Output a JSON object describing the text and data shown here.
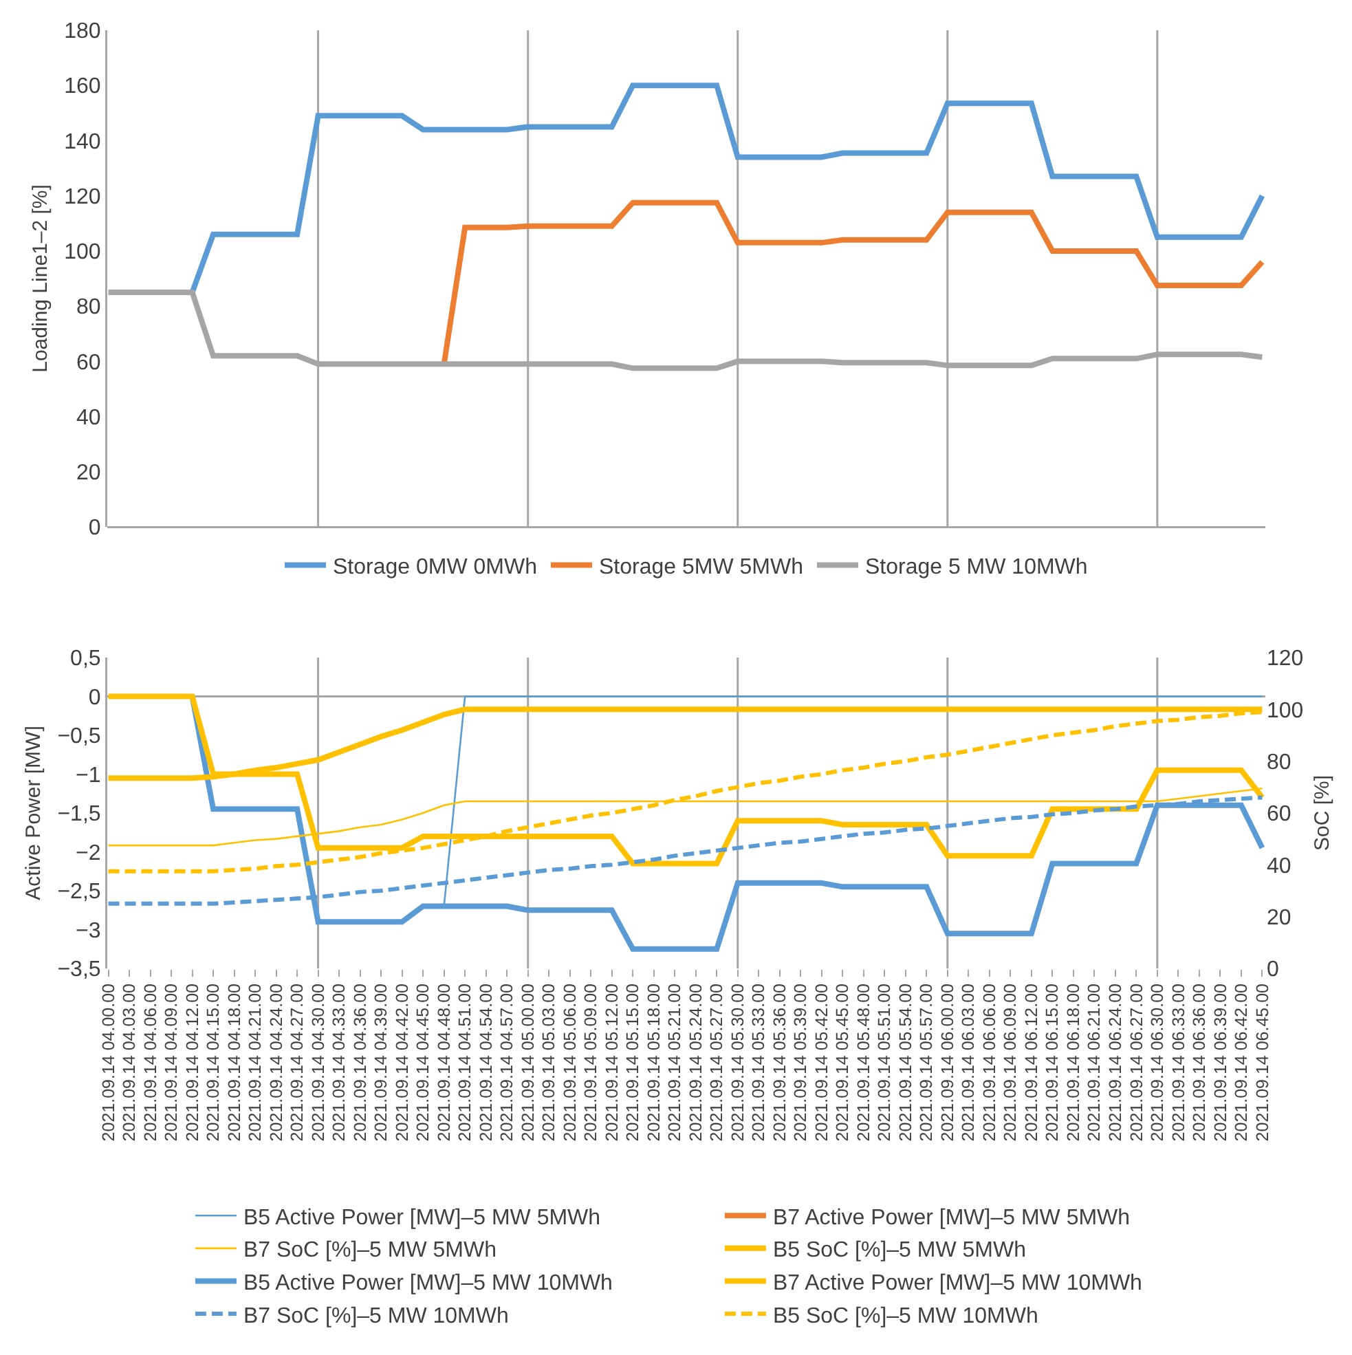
{
  "chart_data": [
    {
      "type": "line",
      "ylabel": "Loading Line1–2 [%]",
      "ylim": [
        0,
        180
      ],
      "yticks": [
        0,
        20,
        40,
        60,
        80,
        100,
        120,
        140,
        160,
        180
      ],
      "tick_labels": "y",
      "legend": "bottom",
      "grid": "x",
      "categories": [
        null,
        null,
        null,
        null,
        null,
        null,
        null,
        null,
        null,
        null,
        null,
        null,
        null,
        null,
        null,
        null,
        null,
        null,
        null,
        null,
        null,
        null,
        null,
        null,
        null,
        null,
        null,
        null,
        null,
        null,
        null,
        null,
        null,
        null,
        null,
        null,
        null,
        null,
        null,
        null,
        null,
        null,
        null,
        null,
        null,
        null,
        null,
        null,
        null,
        null,
        null,
        null,
        null,
        null,
        null,
        null
      ],
      "series": [
        {
          "name": "Storage 0MW 0MWh",
          "color": "#5b9bd5",
          "values": [
            null,
            null,
            null,
            null,
            85,
            106,
            106,
            106,
            106,
            106,
            149,
            149,
            149,
            149,
            149,
            144,
            144,
            144,
            144,
            144,
            145,
            145,
            145,
            145,
            145,
            160,
            160,
            160,
            160,
            160,
            134,
            134,
            134,
            134,
            134,
            135.5,
            135.5,
            135.5,
            135.5,
            135.5,
            153.5,
            153.5,
            153.5,
            153.5,
            153.5,
            127,
            127,
            127,
            127,
            127,
            105,
            105,
            105,
            105,
            105,
            120
          ]
        },
        {
          "name": "Storage 5MW 5MWh",
          "color": "#ed7d31",
          "values": [
            null,
            null,
            null,
            null,
            null,
            null,
            null,
            null,
            null,
            null,
            null,
            null,
            null,
            null,
            null,
            null,
            59,
            108.5,
            108.5,
            108.5,
            109,
            109,
            109,
            109,
            109,
            117.5,
            117.5,
            117.5,
            117.5,
            117.5,
            103,
            103,
            103,
            103,
            103,
            104,
            104,
            104,
            104,
            104,
            114,
            114,
            114,
            114,
            114,
            100,
            100,
            100,
            100,
            100,
            87.5,
            87.5,
            87.5,
            87.5,
            87.5,
            96
          ]
        },
        {
          "name": "Storage 5 MW 10MWh",
          "color": "#a5a5a5",
          "values": [
            85,
            85,
            85,
            85,
            85,
            62,
            62,
            62,
            62,
            62,
            59,
            59,
            59,
            59,
            59,
            59,
            59,
            59,
            59,
            59,
            59,
            59,
            59,
            59,
            59,
            57.5,
            57.5,
            57.5,
            57.5,
            57.5,
            60,
            60,
            60,
            60,
            60,
            59.5,
            59.5,
            59.5,
            59.5,
            59.5,
            58.5,
            58.5,
            58.5,
            58.5,
            58.5,
            61,
            61,
            61,
            61,
            61,
            62.5,
            62.5,
            62.5,
            62.5,
            62.5,
            61.5
          ]
        }
      ]
    },
    {
      "type": "line",
      "ylabel": "Active Power [MW]",
      "y2label": "SoC [%]",
      "ylim": [
        -3.5,
        0.5
      ],
      "legend": "bottom",
      "grid": "x",
      "yticks": [
        {
          "value": -3.5,
          "label": "−3,5"
        },
        {
          "value": -3,
          "label": "−3"
        },
        {
          "value": -2.5,
          "label": "−2,5"
        },
        {
          "value": -2,
          "label": "−2"
        },
        {
          "value": -1.5,
          "label": "−1,5"
        },
        {
          "value": -1,
          "label": "−1"
        },
        {
          "value": -0.5,
          "label": "−0,5"
        },
        0,
        {
          "value": 0.5,
          "label": "0,5"
        }
      ],
      "y2lim": [
        0,
        120
      ],
      "y2ticks": [
        0,
        20,
        40,
        60,
        80,
        100,
        120
      ],
      "ref_lines": [
        {
          "axis": "y",
          "value": 0,
          "color": "#a6a6a6"
        }
      ],
      "categories": [
        "2021.09.14 04.00.00",
        "2021.09.14 04.03.00",
        "2021.09.14 04.06.00",
        "2021.09.14 04.09.00",
        "2021.09.14 04.12.00",
        "2021.09.14 04.15.00",
        "2021.09.14 04.18.00",
        "2021.09.14 04.21.00",
        "2021.09.14 04.24.00",
        "2021.09.14 04.27.00",
        "2021.09.14 04.30.00",
        "2021.09.14 04.33.00",
        "2021.09.14 04.36.00",
        "2021.09.14 04.39.00",
        "2021.09.14 04.42.00",
        "2021.09.14 04.45.00",
        "2021.09.14 04.48.00",
        "2021.09.14 04.51.00",
        "2021.09.14 04.54.00",
        "2021.09.14 04.57.00",
        "2021.09.14 05.00.00",
        "2021.09.14 05.03.00",
        "2021.09.14 05.06.00",
        "2021.09.14 05.09.00",
        "2021.09.14 05.12.00",
        "2021.09.14 05.15.00",
        "2021.09.14 05.18.00",
        "2021.09.14 05.21.00",
        "2021.09.14 05.24.00",
        "2021.09.14 05.27.00",
        "2021.09.14 05.30.00",
        "2021.09.14 05.33.00",
        "2021.09.14 05.36.00",
        "2021.09.14 05.39.00",
        "2021.09.14 05.42.00",
        "2021.09.14 05.45.00",
        "2021.09.14 05.48.00",
        "2021.09.14 05.51.00",
        "2021.09.14 05.54.00",
        "2021.09.14 05.57.00",
        "2021.09.14 06.00.00",
        "2021.09.14 06.03.00",
        "2021.09.14 06.06.00",
        "2021.09.14 06.09.00",
        "2021.09.14 06.12.00",
        "2021.09.14 06.15.00",
        "2021.09.14 06.18.00",
        "2021.09.14 06.21.00",
        "2021.09.14 06.24.00",
        "2021.09.14 06.27.00",
        "2021.09.14 06.30.00",
        "2021.09.14 06.33.00",
        "2021.09.14 06.36.00",
        "2021.09.14 06.39.00",
        "2021.09.14 06.42.00",
        "2021.09.14 06.45.00"
      ],
      "series": [
        {
          "name": "B5 Active Power [MW]–5 MW 5MWh",
          "color": "#5b9bd5",
          "values": [
            null,
            null,
            null,
            null,
            null,
            null,
            null,
            null,
            null,
            null,
            null,
            null,
            null,
            null,
            null,
            null,
            -2.7,
            0,
            0,
            0,
            0,
            0,
            0,
            0,
            0,
            0,
            0,
            0,
            0,
            0,
            0,
            0,
            0,
            0,
            0,
            0,
            0,
            0,
            0,
            0,
            0,
            0,
            0,
            0,
            0,
            0,
            0,
            0,
            0,
            0,
            0,
            0,
            0,
            0,
            0,
            0
          ]
        },
        {
          "name": "B7 Active Power [MW]–5 MW 5MWh",
          "color": "#ed7d31",
          "values": [
            null,
            null,
            null,
            null,
            null,
            null,
            null,
            null,
            null,
            null,
            null,
            null,
            null,
            null,
            null,
            null,
            null,
            null,
            null,
            null,
            null,
            null,
            null,
            null,
            null,
            null,
            null,
            null,
            null,
            null,
            null,
            null,
            null,
            null,
            null,
            null,
            null,
            null,
            null,
            null,
            null,
            null,
            null,
            null,
            null,
            null,
            null,
            null,
            null,
            null,
            null,
            null,
            null,
            null,
            null,
            null
          ]
        },
        {
          "name": "B7 SoC [%]–5 MW 5MWh",
          "color": "#ffc000",
          "axis": "y2",
          "values": [
            47.5,
            47.5,
            47.5,
            47.5,
            47.5,
            47.5,
            48.5,
            49.5,
            50,
            51,
            52,
            53,
            54.5,
            55.5,
            57.5,
            60,
            63,
            64.5,
            64.5,
            64.5,
            64.5,
            64.5,
            64.5,
            64.5,
            64.5,
            64.5,
            64.5,
            64.5,
            64.5,
            64.5,
            64.5,
            64.5,
            64.5,
            64.5,
            64.5,
            64.5,
            64.5,
            64.5,
            64.5,
            64.5,
            64.5,
            64.5,
            64.5,
            64.5,
            64.5,
            64.5,
            64.5,
            64.5,
            64.5,
            64.5,
            64.5,
            65.5,
            66.5,
            67.5,
            68.5,
            69.5
          ]
        },
        {
          "name": "B5 SoC [%]–5 MW 5MWh",
          "color": "#ffc000",
          "axis": "y2",
          "values": [
            73.5,
            73.5,
            73.5,
            73.5,
            73.5,
            74,
            75,
            76.5,
            77.5,
            79,
            80.5,
            83.5,
            86.5,
            89.5,
            92,
            95,
            98,
            100,
            100,
            100,
            100,
            100,
            100,
            100,
            100,
            100,
            100,
            100,
            100,
            100,
            100,
            100,
            100,
            100,
            100,
            100,
            100,
            100,
            100,
            100,
            100,
            100,
            100,
            100,
            100,
            100,
            100,
            100,
            100,
            100,
            100,
            100,
            100,
            100,
            100,
            100
          ]
        },
        {
          "name": "B5 Active Power [MW]–5 MW 10MWh",
          "color": "#5b9bd5",
          "values": [
            null,
            null,
            null,
            null,
            0,
            -1.45,
            -1.45,
            -1.45,
            -1.45,
            -1.45,
            -2.9,
            -2.9,
            -2.9,
            -2.9,
            -2.9,
            -2.7,
            -2.7,
            -2.7,
            -2.7,
            -2.7,
            -2.75,
            -2.75,
            -2.75,
            -2.75,
            -2.75,
            -3.25,
            -3.25,
            -3.25,
            -3.25,
            -3.25,
            -2.4,
            -2.4,
            -2.4,
            -2.4,
            -2.4,
            -2.45,
            -2.45,
            -2.45,
            -2.45,
            -2.45,
            -3.05,
            -3.05,
            -3.05,
            -3.05,
            -3.05,
            -2.15,
            -2.15,
            -2.15,
            -2.15,
            -2.15,
            -1.4,
            -1.4,
            -1.4,
            -1.4,
            -1.4,
            -1.95
          ]
        },
        {
          "name": "B7 Active Power [MW]–5 MW 10MWh",
          "color": "#ffc000",
          "values": [
            0,
            0,
            0,
            0,
            0,
            -1,
            -1,
            -1,
            -1,
            -1,
            -1.95,
            -1.95,
            -1.95,
            -1.95,
            -1.95,
            -1.8,
            -1.8,
            -1.8,
            -1.8,
            -1.8,
            -1.8,
            -1.8,
            -1.8,
            -1.8,
            -1.8,
            -2.15,
            -2.15,
            -2.15,
            -2.15,
            -2.15,
            -1.6,
            -1.6,
            -1.6,
            -1.6,
            -1.6,
            -1.65,
            -1.65,
            -1.65,
            -1.65,
            -1.65,
            -2.05,
            -2.05,
            -2.05,
            -2.05,
            -2.05,
            -1.45,
            -1.45,
            -1.45,
            -1.45,
            -1.45,
            -0.95,
            -0.95,
            -0.95,
            -0.95,
            -0.95,
            -1.3
          ]
        },
        {
          "name": "B7 SoC [%]–5 MW 10MWh",
          "color": "#5b9bd5",
          "axis": "y2",
          "line_style": "dashed",
          "values": [
            25,
            25,
            25,
            25,
            25,
            25,
            25.5,
            26,
            26.5,
            27,
            27.5,
            28.5,
            29.5,
            30,
            31,
            32,
            33,
            34,
            35,
            36,
            37,
            38,
            38.5,
            39.5,
            40,
            41,
            42,
            43.5,
            44.5,
            45.5,
            46.5,
            47.5,
            48.5,
            49,
            50,
            51,
            52,
            52.5,
            53.5,
            54,
            55,
            56,
            57,
            58,
            58.5,
            59.5,
            60,
            61,
            61.5,
            62.5,
            63,
            63.5,
            64.5,
            65,
            65.5,
            66
          ]
        },
        {
          "name": "B5 SoC [%]–5 MW 10MWh",
          "color": "#ffc000",
          "axis": "y2",
          "line_style": "dashed",
          "values": [
            37.5,
            37.5,
            37.5,
            37.5,
            37.5,
            37.5,
            38,
            38.5,
            39.5,
            40,
            41,
            42,
            43,
            44.5,
            45.5,
            46.5,
            48,
            49.5,
            51,
            53,
            54.5,
            56,
            57.5,
            59,
            60,
            61.5,
            63,
            65,
            66.5,
            68.5,
            70,
            71.5,
            72.5,
            74,
            75,
            76.5,
            77.5,
            79,
            80,
            81.5,
            82.5,
            84,
            85.5,
            87,
            88.5,
            90,
            91,
            92,
            93.5,
            94.5,
            95.5,
            96,
            97,
            97.5,
            98.5,
            99
          ]
        }
      ]
    }
  ]
}
